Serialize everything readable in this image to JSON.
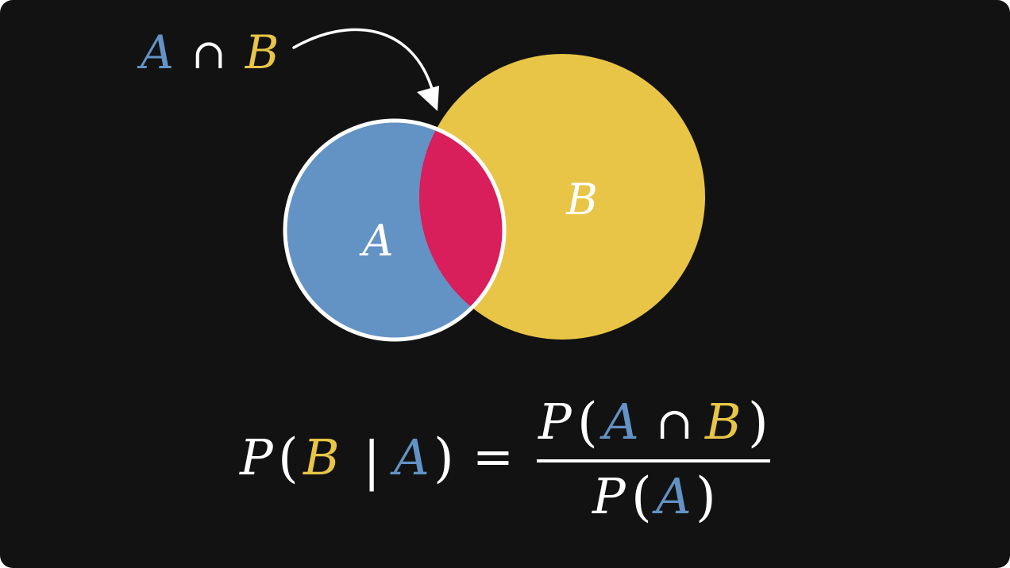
{
  "colors": {
    "background": "#121212",
    "set_a": "#6392C5",
    "set_b": "#E8C547",
    "intersection": "#D81E5B",
    "text": "#FFFFFF",
    "outline": "#FFFFFF"
  },
  "labels": {
    "set_a": "A",
    "set_b": "B",
    "intersection_symbol": "∩"
  },
  "formula": {
    "p": "P",
    "lparen": "(",
    "rparen": ")",
    "given": "|",
    "equals": "=",
    "b": "B",
    "a": "A",
    "intersection": "∩"
  }
}
